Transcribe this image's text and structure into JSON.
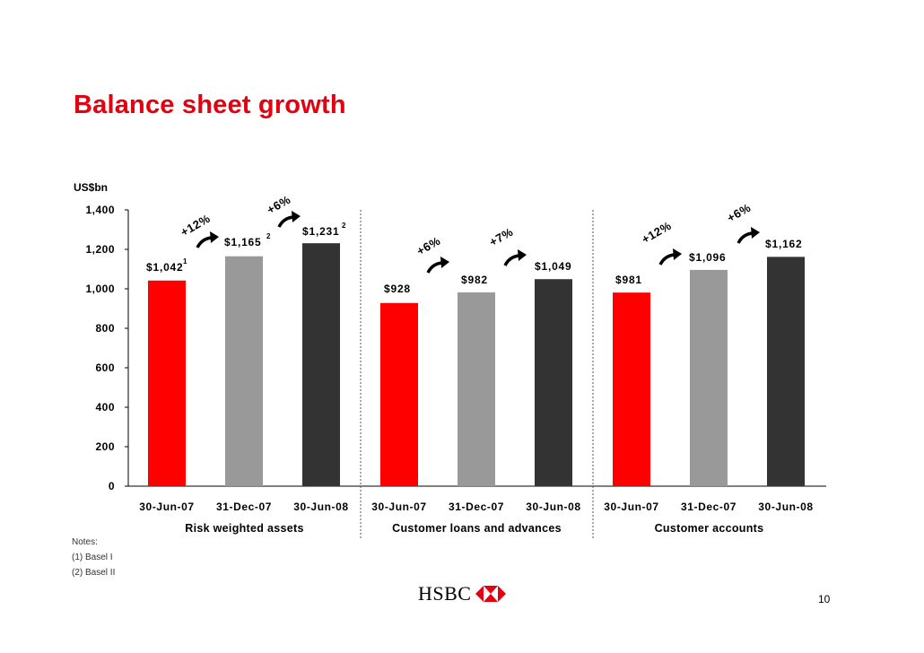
{
  "title": "Balance sheet growth",
  "notes": {
    "heading": "Notes:",
    "items": [
      "(1) Basel I",
      "(2) Basel II"
    ]
  },
  "logo": {
    "text": "HSBC",
    "hexagon_color": "#e4000f"
  },
  "page_number": "10",
  "colors": {
    "title": "#e4000f",
    "bar_jun07": "#ff0000",
    "bar_dec07": "#999999",
    "bar_jun08": "#333333"
  },
  "chart_data": {
    "type": "bar",
    "ylabel": "US$bn",
    "ylim": [
      0,
      1400
    ],
    "yticks": [
      0,
      200,
      400,
      600,
      800,
      1000,
      1200,
      1400
    ],
    "ytick_labels": [
      "0",
      "200",
      "400",
      "600",
      "800",
      "1,000",
      "1,200",
      "1,400"
    ],
    "grid": false,
    "groups": [
      {
        "name": "Risk weighted assets",
        "categories": [
          "30-Jun-07",
          "31-Dec-07",
          "30-Jun-08"
        ],
        "values": [
          1042,
          1165,
          1231
        ],
        "value_labels": [
          "$1,042",
          "$1,165",
          "$1,231"
        ],
        "footnotes": [
          "1",
          "2",
          "2"
        ],
        "growth": [
          "+12%",
          "+6%"
        ]
      },
      {
        "name": "Customer loans and advances",
        "categories": [
          "30-Jun-07",
          "31-Dec-07",
          "30-Jun-08"
        ],
        "values": [
          928,
          982,
          1049
        ],
        "value_labels": [
          "$928",
          "$982",
          "$1,049"
        ],
        "footnotes": [
          "",
          "",
          ""
        ],
        "growth": [
          "+6%",
          "+7%"
        ]
      },
      {
        "name": "Customer accounts",
        "categories": [
          "30-Jun-07",
          "31-Dec-07",
          "30-Jun-08"
        ],
        "values": [
          981,
          1096,
          1162
        ],
        "value_labels": [
          "$981",
          "$1,096",
          "$1,162"
        ],
        "footnotes": [
          "",
          "",
          ""
        ],
        "growth": [
          "+12%",
          "+6%"
        ]
      }
    ]
  }
}
